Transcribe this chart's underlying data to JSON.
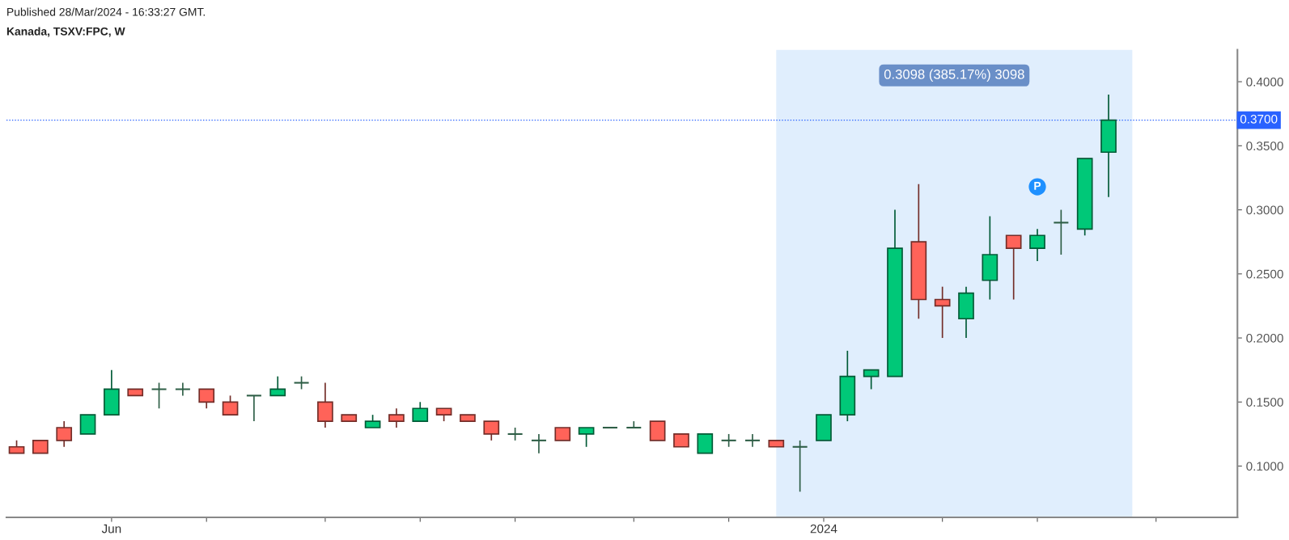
{
  "chart_data": {
    "type": "candlestick",
    "title": "Kanada, TSXV:FPC, W",
    "annotations": [
      "Published 28/Mar/2024 - 16:33:27 GMT.",
      {
        "text": "P",
        "x": "2024-03-04",
        "y": 0.318
      }
    ],
    "x": [
      "2023-05-08",
      "2023-05-15",
      "2023-05-22",
      "2023-05-29",
      "2023-06-05",
      "2023-06-12",
      "2023-06-19",
      "2023-06-26",
      "2023-07-03",
      "2023-07-10",
      "2023-07-17",
      "2023-07-24",
      "2023-07-31",
      "2023-08-07",
      "2023-08-14",
      "2023-08-21",
      "2023-08-28",
      "2023-09-04",
      "2023-09-11",
      "2023-09-18",
      "2023-09-25",
      "2023-10-02",
      "2023-10-09",
      "2023-10-16",
      "2023-10-23",
      "2023-10-30",
      "2023-11-06",
      "2023-11-13",
      "2023-11-20",
      "2023-11-27",
      "2023-12-04",
      "2023-12-11",
      "2023-12-18",
      "2023-12-25",
      "2024-01-01",
      "2024-01-08",
      "2024-01-15",
      "2024-01-22",
      "2024-01-29",
      "2024-02-05",
      "2024-02-12",
      "2024-02-19",
      "2024-02-26",
      "2024-03-04",
      "2024-03-11",
      "2024-03-18",
      "2024-03-25"
    ],
    "ohlc": [
      [
        0.115,
        0.12,
        0.11,
        0.11
      ],
      [
        0.12,
        0.12,
        0.11,
        0.11
      ],
      [
        0.13,
        0.135,
        0.115,
        0.12
      ],
      [
        0.125,
        0.14,
        0.125,
        0.14
      ],
      [
        0.14,
        0.175,
        0.14,
        0.16
      ],
      [
        0.16,
        0.16,
        0.155,
        0.155
      ],
      [
        0.16,
        0.165,
        0.145,
        0.16
      ],
      [
        0.16,
        0.165,
        0.155,
        0.16
      ],
      [
        0.16,
        0.16,
        0.145,
        0.15
      ],
      [
        0.15,
        0.155,
        0.14,
        0.14
      ],
      [
        0.155,
        0.155,
        0.135,
        0.155
      ],
      [
        0.155,
        0.17,
        0.155,
        0.16
      ],
      [
        0.165,
        0.17,
        0.16,
        0.165
      ],
      [
        0.15,
        0.165,
        0.13,
        0.135
      ],
      [
        0.14,
        0.14,
        0.135,
        0.135
      ],
      [
        0.13,
        0.14,
        0.13,
        0.135
      ],
      [
        0.14,
        0.145,
        0.13,
        0.135
      ],
      [
        0.135,
        0.15,
        0.135,
        0.145
      ],
      [
        0.145,
        0.145,
        0.135,
        0.14
      ],
      [
        0.14,
        0.14,
        0.135,
        0.135
      ],
      [
        0.135,
        0.135,
        0.12,
        0.125
      ],
      [
        0.125,
        0.13,
        0.12,
        0.125
      ],
      [
        0.12,
        0.125,
        0.11,
        0.12
      ],
      [
        0.13,
        0.13,
        0.12,
        0.12
      ],
      [
        0.125,
        0.13,
        0.115,
        0.13
      ],
      [
        0.13,
        0.13,
        0.13,
        0.13
      ],
      [
        0.13,
        0.135,
        0.13,
        0.13
      ],
      [
        0.135,
        0.135,
        0.12,
        0.12
      ],
      [
        0.125,
        0.125,
        0.115,
        0.115
      ],
      [
        0.11,
        0.125,
        0.11,
        0.125
      ],
      [
        0.12,
        0.125,
        0.115,
        0.12
      ],
      [
        0.12,
        0.125,
        0.115,
        0.12
      ],
      [
        0.12,
        0.12,
        0.115,
        0.115
      ],
      [
        0.115,
        0.12,
        0.08,
        0.115
      ],
      [
        0.12,
        0.14,
        0.12,
        0.14
      ],
      [
        0.14,
        0.19,
        0.135,
        0.17
      ],
      [
        0.17,
        0.175,
        0.16,
        0.175
      ],
      [
        0.17,
        0.3,
        0.17,
        0.27
      ],
      [
        0.275,
        0.32,
        0.215,
        0.23
      ],
      [
        0.23,
        0.24,
        0.2,
        0.225
      ],
      [
        0.215,
        0.24,
        0.2,
        0.235
      ],
      [
        0.245,
        0.295,
        0.23,
        0.265
      ],
      [
        0.28,
        0.28,
        0.23,
        0.27
      ],
      [
        0.27,
        0.285,
        0.26,
        0.28
      ],
      [
        0.29,
        0.3,
        0.265,
        0.29
      ],
      [
        0.285,
        0.34,
        0.28,
        0.34
      ],
      [
        0.345,
        0.39,
        0.31,
        0.37
      ]
    ],
    "colors": [
      "#ff6359",
      "#ff6359",
      "#ff6359",
      "#00c878",
      "#00c878",
      "#ff6359",
      "#2e5e46",
      "#2e5e46",
      "#ff6359",
      "#ff6359",
      "#2e5e46",
      "#00c878",
      "#2e5e46",
      "#ff6359",
      "#ff6359",
      "#00c878",
      "#ff6359",
      "#00c878",
      "#ff6359",
      "#ff6359",
      "#ff6359",
      "#2e5e46",
      "#2e5e46",
      "#ff6359",
      "#00c878",
      "#2e5e46",
      "#2e5e46",
      "#ff6359",
      "#ff6359",
      "#00c878",
      "#2e5e46",
      "#2e5e46",
      "#ff6359",
      "#2e5e46",
      "#00c878",
      "#00c878",
      "#00c878",
      "#00c878",
      "#ff6359",
      "#ff6359",
      "#00c878",
      "#00c878",
      "#ff6359",
      "#00c878",
      "#2e5e46",
      "#00c878",
      "#00c878"
    ],
    "xlim": [
      "2023-05-05",
      "2024-05-02"
    ],
    "xticks": [
      {
        "value": "2023-06-05",
        "label": "Jun"
      },
      {
        "value": "2023-07-03",
        "label": null
      },
      {
        "value": "2023-08-07",
        "label": null
      },
      {
        "value": "2023-09-04",
        "label": null
      },
      {
        "value": "2023-10-02",
        "label": null
      },
      {
        "value": "2023-11-06",
        "label": null
      },
      {
        "value": "2023-12-04",
        "label": null
      },
      {
        "value": "2024-01-01",
        "label": "2024"
      },
      {
        "value": "2024-02-05",
        "label": null
      },
      {
        "value": "2024-03-04",
        "label": null
      },
      {
        "value": "2024-04-08",
        "label": null
      }
    ],
    "ylim": [
      0.06,
      0.425
    ],
    "yticks": [
      {
        "value": 0.1,
        "label": "0.1000"
      },
      {
        "value": 0.15,
        "label": "0.1500"
      },
      {
        "value": 0.2,
        "label": "0.2000"
      },
      {
        "value": 0.25,
        "label": "0.2500"
      },
      {
        "value": 0.3,
        "label": "0.3000"
      },
      {
        "value": 0.35,
        "label": "0.3500"
      },
      {
        "value": 0.4,
        "label": "0.4000"
      }
    ],
    "ref_lines": [
      {
        "axis": "y",
        "value": 0.37,
        "label": "0.3700",
        "color": "#2962ff",
        "line_style": "dotted"
      }
    ],
    "bands": [
      {
        "axis": "x",
        "from": "2023-12-18",
        "to": "2024-04-01",
        "label": "0.3098 (385.17%) 3098",
        "color": "#e0eefd"
      }
    ],
    "grid": false
  }
}
